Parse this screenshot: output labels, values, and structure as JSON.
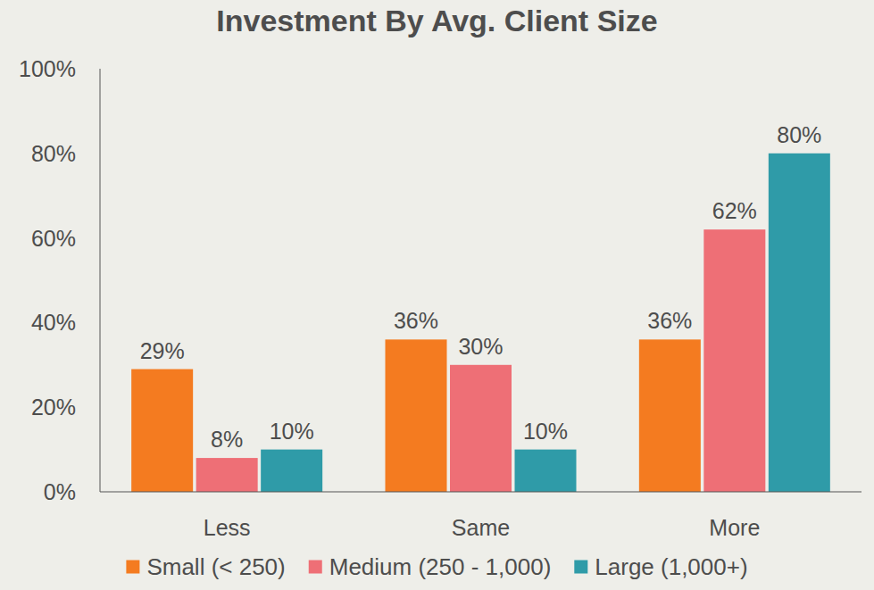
{
  "chart_data": {
    "type": "bar",
    "title": "Investment By Avg. Client Size",
    "categories": [
      "Less",
      "Same",
      "More"
    ],
    "series": [
      {
        "name": "Small (< 250)",
        "color": "#f47b20",
        "values": [
          29,
          36,
          36
        ],
        "value_labels": [
          "29%",
          "36%",
          "36%"
        ]
      },
      {
        "name": "Medium (250 - 1,000)",
        "color": "#ee6f76",
        "values": [
          8,
          30,
          62
        ],
        "value_labels": [
          "8%",
          "30%",
          "62%"
        ]
      },
      {
        "name": "Large (1,000+)",
        "color": "#2f9ba8",
        "values": [
          10,
          10,
          80
        ],
        "value_labels": [
          "10%",
          "10%",
          "80%"
        ]
      }
    ],
    "ylim": [
      0,
      100
    ],
    "yticks": [
      {
        "value": 0,
        "label": "0%"
      },
      {
        "value": 20,
        "label": "20%"
      },
      {
        "value": 40,
        "label": "40%"
      },
      {
        "value": 60,
        "label": "60%"
      },
      {
        "value": 80,
        "label": "80%"
      },
      {
        "value": 100,
        "label": "100%"
      }
    ],
    "grid": false,
    "legend": "bottom",
    "data_labels": true
  }
}
